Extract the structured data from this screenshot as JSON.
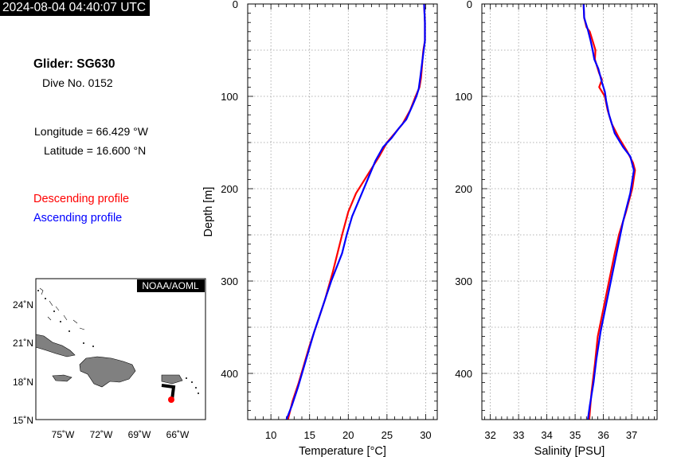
{
  "header": {
    "timestamp": "2024-08-04 04:40:07 UTC"
  },
  "info": {
    "glider": "Glider: SG630",
    "dive": "Dive No. 0152",
    "longitude": "Longitude = 66.429 °W",
    "latitude": "Latitude = 16.600 °N"
  },
  "legend": {
    "descending": {
      "label": "Descending profile",
      "color": "#ff0000"
    },
    "ascending": {
      "label": "Ascending profile",
      "color": "#0000ff"
    }
  },
  "map": {
    "credit": "NOAA/AOML",
    "lat_ticks": [
      "24˚N",
      "21˚N",
      "18˚N",
      "15˚N"
    ],
    "lon_ticks": [
      "75˚W",
      "72˚W",
      "69˚W",
      "66˚W"
    ],
    "track_color": "#000000",
    "position_color": "#ff0000",
    "land_color": "#808080"
  },
  "chart_data": [
    {
      "type": "line",
      "xlabel": "Temperature [°C]",
      "ylabel": "Depth [m]",
      "xlim": [
        7,
        31.5
      ],
      "ylim": [
        450,
        0
      ],
      "xticks": [
        10,
        15,
        20,
        25,
        30
      ],
      "yticks": [
        0,
        100,
        200,
        300,
        400
      ],
      "grid": true,
      "series": [
        {
          "name": "Descending profile",
          "color": "#ff0000",
          "x": [
            29.8,
            29.9,
            29.9,
            29.7,
            29.6,
            29.5,
            29.4,
            29.2,
            28.7,
            28.0,
            27.0,
            26.0,
            25.0,
            24.0,
            22.5,
            21.0,
            20.0,
            19.2,
            18.6,
            18.0,
            17.5,
            17.0,
            16.4,
            15.8,
            15.0,
            14.3,
            13.6,
            12.8,
            12.2
          ],
          "y": [
            0,
            20,
            40,
            50,
            60,
            70,
            80,
            90,
            100,
            115,
            130,
            140,
            150,
            165,
            185,
            205,
            225,
            250,
            270,
            290,
            305,
            320,
            335,
            350,
            370,
            390,
            410,
            430,
            450
          ]
        },
        {
          "name": "Ascending profile",
          "color": "#0000ff",
          "x": [
            29.8,
            29.9,
            29.9,
            29.6,
            29.3,
            29.1,
            28.8,
            28.3,
            27.5,
            26.5,
            25.6,
            24.5,
            23.5,
            22.5,
            21.5,
            20.5,
            19.8,
            19.2,
            18.5,
            17.8,
            17.0,
            16.2,
            15.6,
            14.9,
            14.2,
            13.5,
            12.7,
            12.0
          ],
          "y": [
            0,
            20,
            40,
            60,
            80,
            92,
            100,
            110,
            125,
            135,
            145,
            155,
            170,
            190,
            210,
            230,
            250,
            270,
            285,
            300,
            320,
            340,
            355,
            375,
            395,
            415,
            435,
            450
          ]
        }
      ]
    },
    {
      "type": "line",
      "xlabel": "Salinity [PSU]",
      "ylabel": "",
      "xlim": [
        31.7,
        37.9
      ],
      "ylim": [
        450,
        0
      ],
      "xticks": [
        32,
        33,
        34,
        35,
        36,
        37
      ],
      "yticks": [
        0,
        100,
        200,
        300,
        400
      ],
      "grid": true,
      "series": [
        {
          "name": "Descending profile",
          "color": "#ff0000",
          "x": [
            35.3,
            35.32,
            35.4,
            35.52,
            35.62,
            35.72,
            35.7,
            35.75,
            35.85,
            35.95,
            35.9,
            35.85,
            36.05,
            36.15,
            36.3,
            36.55,
            36.85,
            37.05,
            37.12,
            37.02,
            36.8,
            36.55,
            36.4,
            36.2,
            36.0,
            35.8,
            35.7,
            35.58,
            35.5
          ],
          "y": [
            0,
            15,
            25,
            30,
            40,
            50,
            60,
            65,
            75,
            82,
            86,
            90,
            100,
            115,
            130,
            145,
            160,
            172,
            180,
            200,
            225,
            250,
            270,
            300,
            330,
            360,
            390,
            420,
            450
          ]
        },
        {
          "name": "Ascending profile",
          "color": "#0000ff",
          "x": [
            35.3,
            35.32,
            35.45,
            35.55,
            35.62,
            35.68,
            35.82,
            35.95,
            36.05,
            36.1,
            36.2,
            36.4,
            36.7,
            36.95,
            37.08,
            36.95,
            36.7,
            36.5,
            36.3,
            36.1,
            35.9,
            35.75,
            35.65,
            35.52,
            35.45
          ],
          "y": [
            0,
            15,
            28,
            40,
            50,
            60,
            70,
            85,
            95,
            105,
            120,
            140,
            155,
            165,
            180,
            205,
            235,
            265,
            295,
            325,
            355,
            385,
            410,
            435,
            450
          ]
        }
      ]
    }
  ]
}
